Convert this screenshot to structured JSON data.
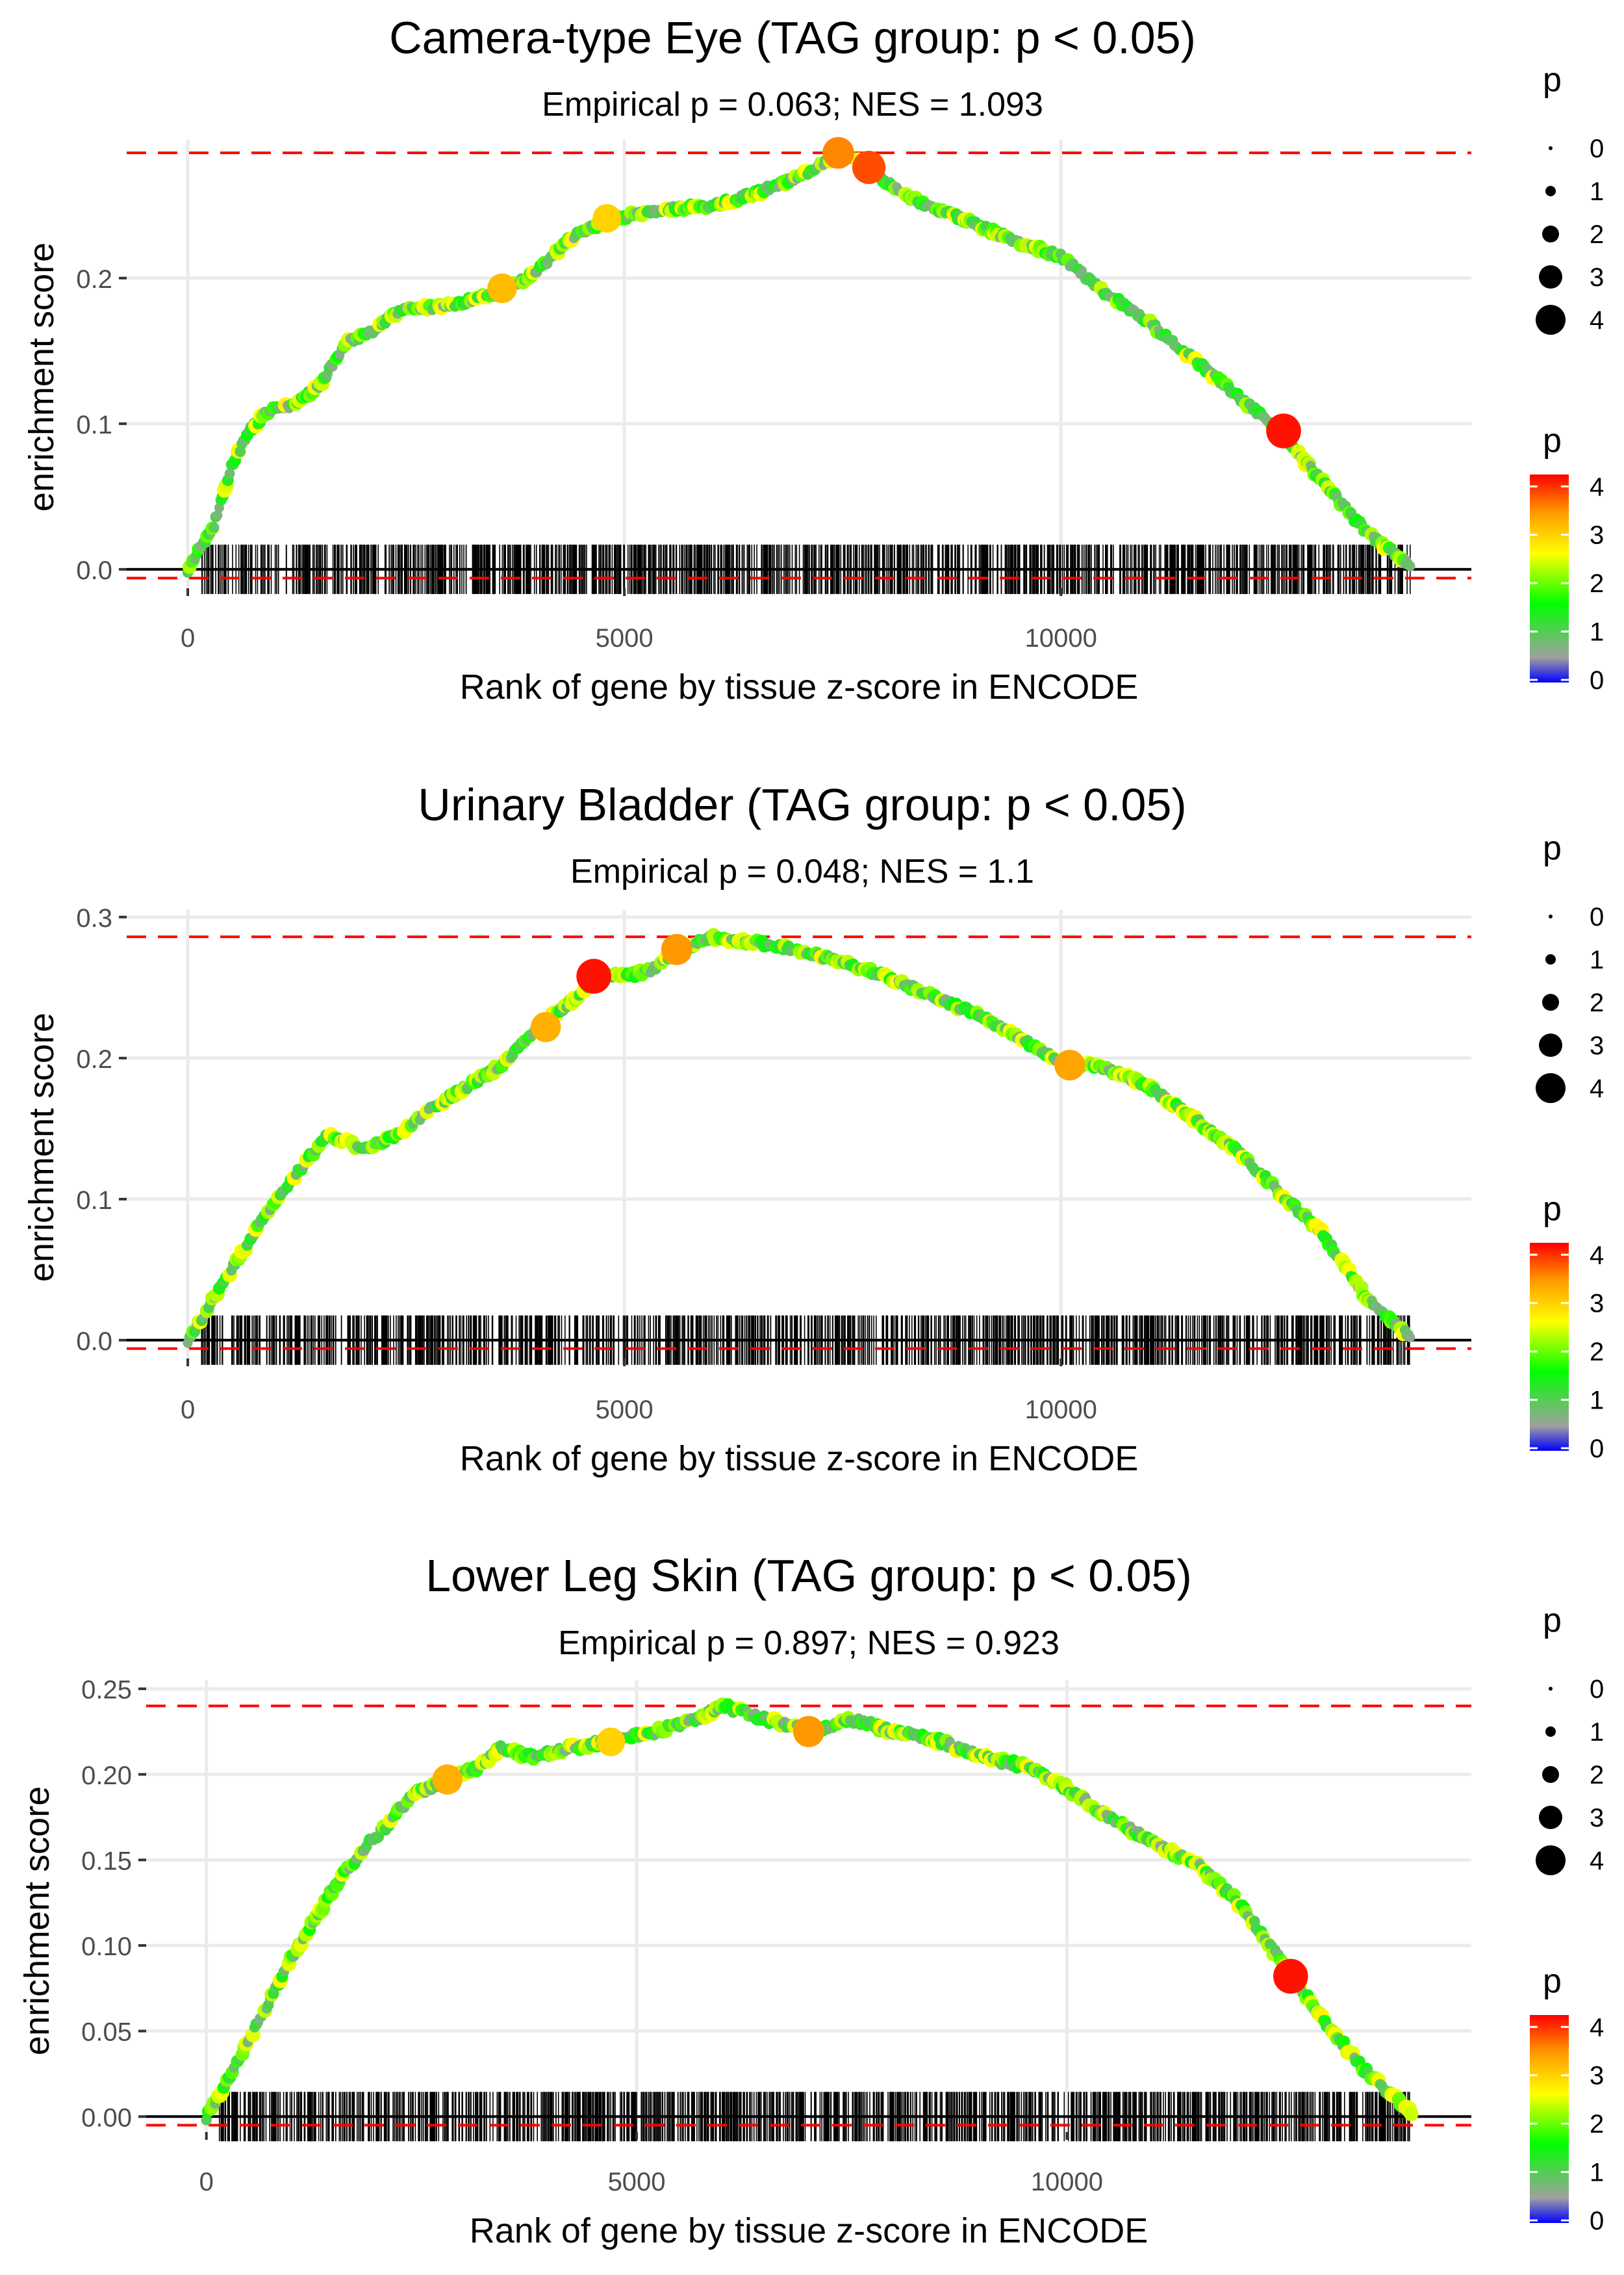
{
  "shared": {
    "xlabel": "Rank of gene by tissue z-score in ENCODE",
    "ylabel": "enrichment score",
    "size_legend_title": "p",
    "color_legend_title": "p",
    "size_legend_labels": [
      "0",
      "1",
      "2",
      "3",
      "4"
    ],
    "color_legend_labels": [
      "4",
      "3",
      "2",
      "1",
      "0"
    ],
    "color_scale": [
      "#0000ff",
      "#a0a0a0",
      "#00ff00",
      "#ffff00",
      "#ff9900",
      "#ff0000"
    ],
    "reference_line_color": "#ff0000"
  },
  "chart_data": [
    {
      "type": "line",
      "title": "Camera-type Eye (TAG group: p < 0.05)",
      "subtitle": "Empirical p = 0.063; NES = 1.093",
      "xlim": [
        -700,
        14700
      ],
      "ylim": [
        -0.013,
        0.295
      ],
      "xticks": [
        0,
        5000,
        10000
      ],
      "xtick_labels": [
        "0",
        "5000",
        "10000"
      ],
      "yticks": [
        0.0,
        0.1,
        0.2
      ],
      "ytick_labels": [
        "0.0",
        "0.1",
        "0.2"
      ],
      "max_line": 0.286,
      "min_line": -0.006,
      "x_end": 14000,
      "curve": [
        [
          0,
          0
        ],
        [
          300,
          0.03
        ],
        [
          500,
          0.07
        ],
        [
          700,
          0.095
        ],
        [
          900,
          0.108
        ],
        [
          1200,
          0.113
        ],
        [
          1500,
          0.125
        ],
        [
          1800,
          0.155
        ],
        [
          2100,
          0.163
        ],
        [
          2400,
          0.177
        ],
        [
          2800,
          0.18
        ],
        [
          3200,
          0.184
        ],
        [
          3600,
          0.191
        ],
        [
          4000,
          0.204
        ],
        [
          4400,
          0.228
        ],
        [
          4800,
          0.24
        ],
        [
          5200,
          0.245
        ],
        [
          5600,
          0.248
        ],
        [
          6000,
          0.25
        ],
        [
          6500,
          0.258
        ],
        [
          7000,
          0.27
        ],
        [
          7500,
          0.286
        ],
        [
          7800,
          0.275
        ],
        [
          8200,
          0.257
        ],
        [
          8800,
          0.242
        ],
        [
          9500,
          0.225
        ],
        [
          10000,
          0.215
        ],
        [
          10500,
          0.19
        ],
        [
          11000,
          0.17
        ],
        [
          11500,
          0.145
        ],
        [
          12000,
          0.12
        ],
        [
          12500,
          0.095
        ],
        [
          13000,
          0.06
        ],
        [
          13500,
          0.025
        ],
        [
          14000,
          0.002
        ]
      ],
      "highlights": [
        [
          3600,
          0.193,
          3.2
        ],
        [
          4800,
          0.241,
          3.0
        ],
        [
          7450,
          0.286,
          3.6
        ],
        [
          7800,
          0.276,
          3.9
        ],
        [
          12550,
          0.095,
          4.2
        ]
      ]
    },
    {
      "type": "line",
      "title": "Urinary Bladder (TAG group: p < 0.05)",
      "subtitle": "Empirical p = 0.048; NES = 1.1",
      "xlim": [
        -700,
        14700
      ],
      "ylim": [
        -0.013,
        0.305
      ],
      "xticks": [
        0,
        5000,
        10000
      ],
      "xtick_labels": [
        "0",
        "5000",
        "10000"
      ],
      "yticks": [
        0.0,
        0.1,
        0.2,
        0.3
      ],
      "ytick_labels": [
        "0.0",
        "0.1",
        "0.2",
        "0.3"
      ],
      "max_line": 0.286,
      "min_line": -0.006,
      "x_end": 14000,
      "curve": [
        [
          0,
          0
        ],
        [
          300,
          0.03
        ],
        [
          600,
          0.06
        ],
        [
          900,
          0.09
        ],
        [
          1200,
          0.115
        ],
        [
          1600,
          0.145
        ],
        [
          2000,
          0.136
        ],
        [
          2400,
          0.145
        ],
        [
          2800,
          0.165
        ],
        [
          3200,
          0.18
        ],
        [
          3600,
          0.195
        ],
        [
          4000,
          0.222
        ],
        [
          4400,
          0.24
        ],
        [
          4700,
          0.258
        ],
        [
          5000,
          0.258
        ],
        [
          5300,
          0.262
        ],
        [
          5600,
          0.276
        ],
        [
          6000,
          0.286
        ],
        [
          6500,
          0.282
        ],
        [
          7000,
          0.276
        ],
        [
          7500,
          0.268
        ],
        [
          8000,
          0.258
        ],
        [
          8500,
          0.245
        ],
        [
          9000,
          0.232
        ],
        [
          9500,
          0.215
        ],
        [
          10000,
          0.197
        ],
        [
          10500,
          0.193
        ],
        [
          11000,
          0.18
        ],
        [
          11500,
          0.158
        ],
        [
          12000,
          0.135
        ],
        [
          12500,
          0.105
        ],
        [
          13000,
          0.075
        ],
        [
          13500,
          0.03
        ],
        [
          14000,
          0.002
        ]
      ],
      "highlights": [
        [
          4100,
          0.222,
          3.3
        ],
        [
          4650,
          0.258,
          4.2
        ],
        [
          5600,
          0.277,
          3.5
        ],
        [
          10100,
          0.195,
          3.4
        ]
      ]
    },
    {
      "type": "line",
      "title": "Lower Leg Skin (TAG group: p < 0.05)",
      "subtitle": "Empirical p = 0.897; NES = 0.923",
      "xlim": [
        -700,
        14700
      ],
      "ylim": [
        -0.009,
        0.255
      ],
      "xticks": [
        0,
        5000,
        10000
      ],
      "xtick_labels": [
        "0",
        "5000",
        "10000"
      ],
      "yticks": [
        0.0,
        0.05,
        0.1,
        0.15,
        0.2,
        0.25
      ],
      "ytick_labels": [
        "0.00",
        "0.05",
        "0.10",
        "0.15",
        "0.20",
        "0.25"
      ],
      "max_line": 0.24,
      "min_line": -0.005,
      "x_end": 14000,
      "curve": [
        [
          0,
          0
        ],
        [
          300,
          0.025
        ],
        [
          600,
          0.055
        ],
        [
          900,
          0.085
        ],
        [
          1200,
          0.11
        ],
        [
          1500,
          0.135
        ],
        [
          1800,
          0.155
        ],
        [
          2100,
          0.17
        ],
        [
          2400,
          0.188
        ],
        [
          2800,
          0.197
        ],
        [
          3200,
          0.205
        ],
        [
          3400,
          0.215
        ],
        [
          3800,
          0.21
        ],
        [
          4200,
          0.215
        ],
        [
          4700,
          0.22
        ],
        [
          5200,
          0.225
        ],
        [
          5700,
          0.232
        ],
        [
          6000,
          0.24
        ],
        [
          6500,
          0.232
        ],
        [
          7000,
          0.225
        ],
        [
          7500,
          0.232
        ],
        [
          8000,
          0.225
        ],
        [
          8500,
          0.22
        ],
        [
          9000,
          0.21
        ],
        [
          9500,
          0.205
        ],
        [
          10000,
          0.192
        ],
        [
          10500,
          0.175
        ],
        [
          11000,
          0.16
        ],
        [
          11500,
          0.148
        ],
        [
          12000,
          0.125
        ],
        [
          12500,
          0.09
        ],
        [
          13000,
          0.055
        ],
        [
          13500,
          0.025
        ],
        [
          14000,
          0.002
        ]
      ],
      "highlights": [
        [
          2800,
          0.197,
          3.3
        ],
        [
          4700,
          0.219,
          3.0
        ],
        [
          7000,
          0.225,
          3.5
        ],
        [
          12600,
          0.082,
          4.2
        ]
      ]
    }
  ]
}
